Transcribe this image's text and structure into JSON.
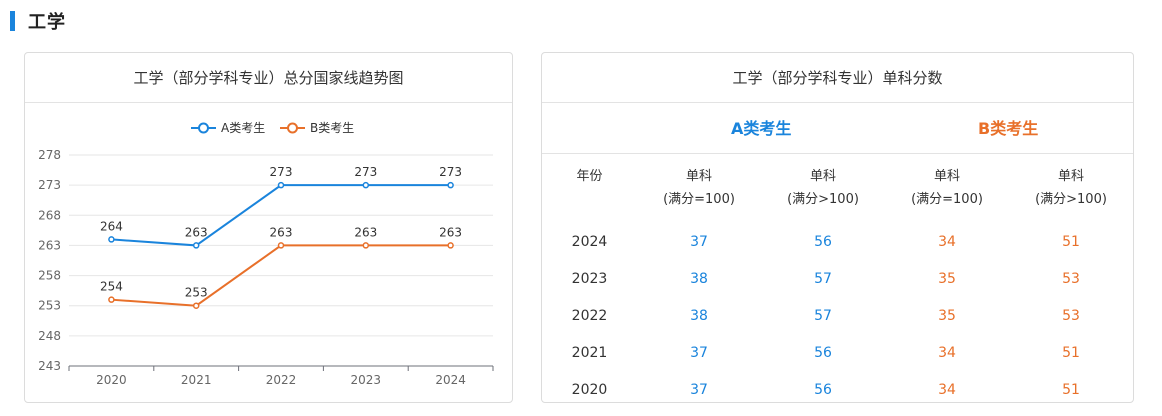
{
  "section": {
    "title": "工学"
  },
  "left_card": {
    "title": "工学（部分学科专业）总分国家线趋势图"
  },
  "right_card": {
    "title": "工学（部分学科专业）单科分数",
    "group_a": "A类考生",
    "group_b": "B类考生",
    "columns": {
      "year": "年份",
      "s1_line1": "单科",
      "s1_line2": "(满分=100)",
      "s2_line1": "单科",
      "s2_line2": "(满分>100)",
      "s3_line1": "单科",
      "s3_line2": "(满分=100)",
      "s4_line1": "单科",
      "s4_line2": "(满分>100)"
    },
    "rows": [
      {
        "year": "2024",
        "a1": "37",
        "a2": "56",
        "b1": "34",
        "b2": "51"
      },
      {
        "year": "2023",
        "a1": "38",
        "a2": "57",
        "b1": "35",
        "b2": "53"
      },
      {
        "year": "2022",
        "a1": "38",
        "a2": "57",
        "b1": "35",
        "b2": "53"
      },
      {
        "year": "2021",
        "a1": "37",
        "a2": "56",
        "b1": "34",
        "b2": "51"
      },
      {
        "year": "2020",
        "a1": "37",
        "a2": "56",
        "b1": "34",
        "b2": "51"
      }
    ]
  },
  "colors": {
    "accent": "#1a84dc",
    "series_a": "#1a84dc",
    "series_b": "#e8702a",
    "grid": "#e6e6e6"
  },
  "chart_data": {
    "type": "line",
    "title": "工学（部分学科专业）总分国家线趋势图",
    "categories": [
      "2020",
      "2021",
      "2022",
      "2023",
      "2024"
    ],
    "series": [
      {
        "name": "A类考生",
        "values": [
          264,
          263,
          273,
          273,
          273
        ]
      },
      {
        "name": "B类考生",
        "values": [
          254,
          253,
          263,
          263,
          263
        ]
      }
    ],
    "yticks": [
      243,
      248,
      253,
      258,
      263,
      268,
      273,
      278
    ],
    "ylim": [
      243,
      278
    ],
    "grid": true,
    "legend": "top-center",
    "data_labels": true
  }
}
